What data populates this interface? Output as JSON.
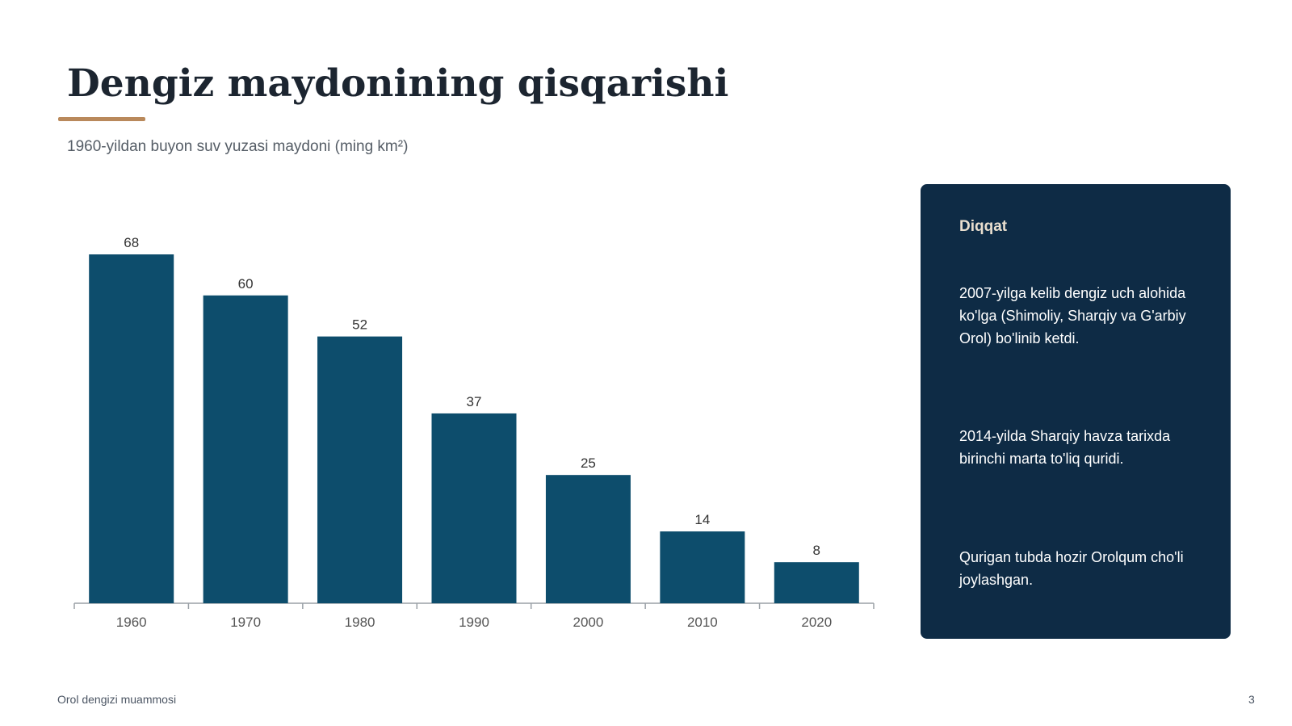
{
  "slide": {
    "title": "Dengiz maydonining qisqarishi",
    "subtitle": "1960-yildan buyon suv yuzasi maydoni (ming km²)",
    "footer_left": "Orol dengizi muammosi",
    "page_number": "3"
  },
  "callout": {
    "heading": "Diqqat",
    "paragraphs": [
      "2007-yilga kelib dengiz uch alohida ko'lga (Shimoliy, Sharqiy va G'arbiy Orol) bo'linib ketdi.",
      "2014-yilda Sharqiy havza tarixda birinchi marta to'liq quridi.",
      "Qurigan tubda hozir Orolqum cho'li joylashgan."
    ]
  },
  "colors": {
    "bar": "#0d4d6c",
    "accent": "#b9895b",
    "panel": "#0e2b45",
    "panel_heading": "#e9dfcf",
    "axis": "#9aa0a6",
    "label": "#333333",
    "tick_label": "#555555"
  },
  "chart_data": {
    "type": "bar",
    "categories": [
      "1960",
      "1970",
      "1980",
      "1990",
      "2000",
      "2010",
      "2020"
    ],
    "values": [
      68,
      60,
      52,
      37,
      25,
      14,
      8
    ],
    "data_labels": true,
    "ylim": [
      0,
      70
    ],
    "grid": false,
    "legend": "none"
  }
}
